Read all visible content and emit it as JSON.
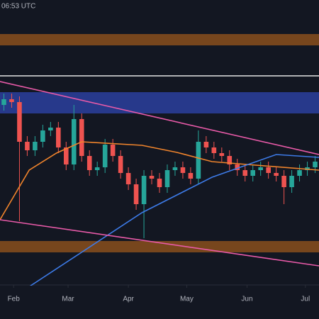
{
  "chart_data": {
    "type": "candlestick",
    "title": "06:53 UTC",
    "x": [
      2,
      6,
      10,
      14,
      18,
      22,
      26,
      30,
      34,
      38,
      42,
      46,
      50,
      54,
      58,
      62,
      66,
      70,
      74,
      78,
      82,
      86,
      90,
      94,
      98,
      102,
      106,
      110,
      114,
      118,
      122,
      126,
      130,
      134,
      138,
      142,
      146,
      150,
      154,
      158,
      162
    ],
    "open": [
      63,
      65,
      64,
      50,
      47,
      50,
      54,
      55,
      48,
      42,
      58,
      45,
      40,
      41,
      49,
      45,
      39,
      35,
      28,
      38,
      37,
      34,
      40,
      41,
      39,
      37,
      50,
      48,
      46,
      45,
      42,
      40,
      38,
      40,
      41,
      39,
      38,
      34,
      38,
      40,
      41
    ],
    "high": [
      67,
      67,
      66,
      52,
      52,
      56,
      57,
      57,
      50,
      63,
      60,
      47,
      43,
      51,
      51,
      47,
      41,
      37,
      40,
      40,
      39,
      42,
      43,
      43,
      41,
      54,
      52,
      50,
      48,
      47,
      44,
      42,
      42,
      43,
      43,
      41,
      40,
      40,
      42,
      43,
      45
    ],
    "low": [
      61,
      62,
      22,
      45,
      45,
      48,
      52,
      46,
      40,
      40,
      43,
      38,
      38,
      39,
      43,
      37,
      33,
      26,
      16,
      35,
      32,
      32,
      38,
      37,
      35,
      35,
      46,
      44,
      43,
      40,
      38,
      36,
      36,
      38,
      37,
      36,
      28,
      32,
      36,
      38,
      39
    ],
    "close": [
      65,
      64,
      50,
      47,
      50,
      54,
      55,
      48,
      42,
      58,
      45,
      40,
      41,
      49,
      45,
      39,
      35,
      28,
      38,
      37,
      34,
      40,
      41,
      39,
      37,
      50,
      48,
      46,
      45,
      42,
      40,
      38,
      40,
      41,
      39,
      38,
      34,
      38,
      40,
      41,
      43
    ],
    "up_color": "#26a69a",
    "down_color": "#ef5350",
    "lines": [
      {
        "color": "#f0842c",
        "x": [
          0,
          15,
          29,
          42,
          73,
          91,
          109,
          127,
          164
        ],
        "values": [
          22.5,
          40,
          46,
          50,
          48.75,
          46.25,
          43,
          42,
          40
        ]
      },
      {
        "color": "#3d7be8",
        "x": [
          13,
          73,
          109,
          142,
          164
        ],
        "values": [
          -2,
          25,
          37.5,
          45.5,
          44.5
        ]
      },
      {
        "color": "#e85aa8",
        "x": [
          0,
          164
        ],
        "values": [
          71.25,
          45.5
        ]
      },
      {
        "color": "#e85aa8",
        "x": [
          0,
          164
        ],
        "values": [
          22.5,
          6.25
        ]
      }
    ],
    "bands": [
      {
        "color": "#8a4f1c",
        "range": [
          84,
          88
        ]
      },
      {
        "color": "#8a4f1c",
        "range": [
          11,
          15
        ]
      },
      {
        "color": "#2b3f9e",
        "range": [
          60,
          67.5
        ]
      }
    ],
    "hlines": [
      {
        "color": "#e6e6e6",
        "value": 73.25
      }
    ],
    "xlim": [
      0,
      164
    ],
    "ylim": [
      0,
      100
    ],
    "xticks": [
      {
        "value": 7,
        "label": "Feb"
      },
      {
        "value": 35,
        "label": "Mar"
      },
      {
        "value": 66,
        "label": "Apr"
      },
      {
        "value": 96,
        "label": "May"
      },
      {
        "value": 127,
        "label": "Jun"
      },
      {
        "value": 157,
        "label": "Jul"
      }
    ]
  }
}
